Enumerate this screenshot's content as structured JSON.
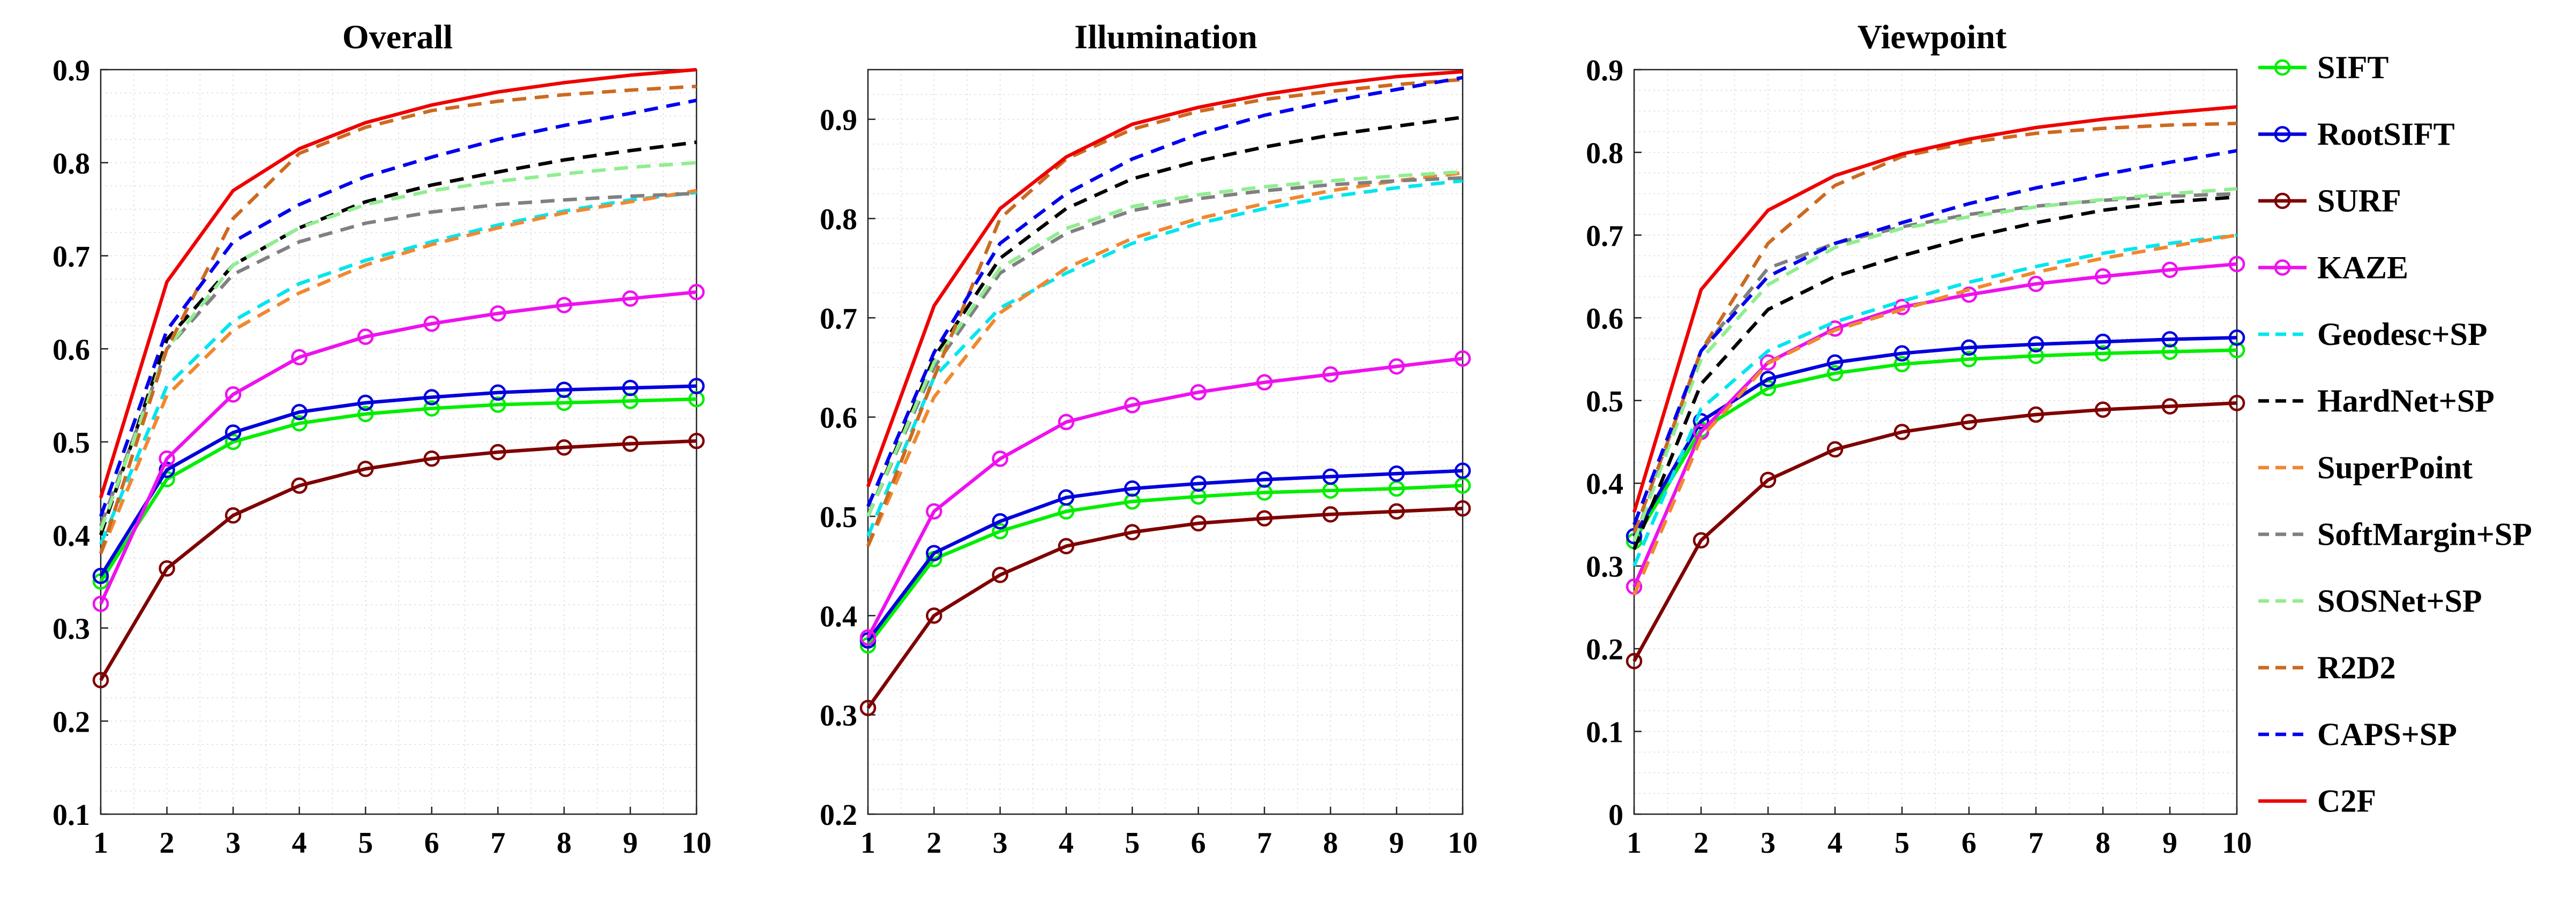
{
  "chart_data": [
    {
      "type": "line",
      "title": "Overall",
      "xlabel": "",
      "ylabel": "",
      "x": [
        1,
        2,
        3,
        4,
        5,
        6,
        7,
        8,
        9,
        10
      ],
      "xticks": [
        1,
        2,
        3,
        4,
        5,
        6,
        7,
        8,
        9,
        10
      ],
      "xlim": [
        1,
        10
      ],
      "ylim": [
        0.1,
        0.9
      ],
      "yticks": [
        0.1,
        0.2,
        0.3,
        0.4,
        0.5,
        0.6,
        0.7,
        0.8,
        0.9
      ],
      "ytick_labels": [
        "0.1",
        "0.2",
        "0.3",
        "0.4",
        "0.5",
        "0.6",
        "0.7",
        "0.8",
        "0.9"
      ],
      "grid": "on",
      "series": [
        {
          "name": "SIFT",
          "values": [
            0.35,
            0.46,
            0.5,
            0.52,
            0.53,
            0.536,
            0.54,
            0.542,
            0.544,
            0.546
          ]
        },
        {
          "name": "RootSIFT",
          "values": [
            0.356,
            0.47,
            0.51,
            0.532,
            0.542,
            0.548,
            0.553,
            0.556,
            0.558,
            0.56
          ]
        },
        {
          "name": "SURF",
          "values": [
            0.244,
            0.364,
            0.421,
            0.453,
            0.471,
            0.482,
            0.489,
            0.494,
            0.498,
            0.501
          ]
        },
        {
          "name": "KAZE",
          "values": [
            0.326,
            0.482,
            0.551,
            0.591,
            0.613,
            0.627,
            0.638,
            0.647,
            0.654,
            0.661
          ]
        },
        {
          "name": "Geodesc+SP",
          "values": [
            0.39,
            0.56,
            0.63,
            0.67,
            0.695,
            0.715,
            0.733,
            0.748,
            0.76,
            0.768
          ]
        },
        {
          "name": "HardNet+SP",
          "values": [
            0.4,
            0.61,
            0.69,
            0.73,
            0.758,
            0.776,
            0.79,
            0.803,
            0.813,
            0.822
          ]
        },
        {
          "name": "SuperPoint",
          "values": [
            0.38,
            0.55,
            0.62,
            0.66,
            0.69,
            0.712,
            0.73,
            0.746,
            0.758,
            0.77
          ]
        },
        {
          "name": "SoftMargin+SP",
          "values": [
            0.41,
            0.6,
            0.68,
            0.715,
            0.735,
            0.747,
            0.755,
            0.76,
            0.764,
            0.767
          ]
        },
        {
          "name": "SOSNet+SP",
          "values": [
            0.405,
            0.6,
            0.69,
            0.73,
            0.755,
            0.77,
            0.78,
            0.788,
            0.795,
            0.8
          ]
        },
        {
          "name": "R2D2",
          "values": [
            0.38,
            0.6,
            0.74,
            0.81,
            0.838,
            0.856,
            0.866,
            0.873,
            0.878,
            0.882
          ]
        },
        {
          "name": "CAPS+SP",
          "values": [
            0.42,
            0.62,
            0.715,
            0.755,
            0.785,
            0.806,
            0.825,
            0.84,
            0.853,
            0.867
          ]
        },
        {
          "name": "C2F",
          "values": [
            0.44,
            0.672,
            0.77,
            0.815,
            0.843,
            0.862,
            0.876,
            0.886,
            0.894,
            0.9
          ]
        }
      ]
    },
    {
      "type": "line",
      "title": "Illumination",
      "xlabel": "",
      "ylabel": "",
      "x": [
        1,
        2,
        3,
        4,
        5,
        6,
        7,
        8,
        9,
        10
      ],
      "xticks": [
        1,
        2,
        3,
        4,
        5,
        6,
        7,
        8,
        9,
        10
      ],
      "xlim": [
        1,
        10
      ],
      "ylim": [
        0.2,
        0.95
      ],
      "yticks": [
        0.2,
        0.3,
        0.4,
        0.5,
        0.6,
        0.7,
        0.8,
        0.9
      ],
      "ytick_labels": [
        "0.2",
        "0.3",
        "0.4",
        "0.5",
        "0.6",
        "0.7",
        "0.8",
        "0.9"
      ],
      "grid": "on",
      "series": [
        {
          "name": "SIFT",
          "values": [
            0.37,
            0.457,
            0.485,
            0.505,
            0.515,
            0.52,
            0.524,
            0.526,
            0.528,
            0.531
          ]
        },
        {
          "name": "RootSIFT",
          "values": [
            0.375,
            0.463,
            0.495,
            0.519,
            0.528,
            0.533,
            0.537,
            0.54,
            0.543,
            0.546
          ]
        },
        {
          "name": "SURF",
          "values": [
            0.307,
            0.4,
            0.441,
            0.47,
            0.484,
            0.493,
            0.498,
            0.502,
            0.505,
            0.508
          ]
        },
        {
          "name": "KAZE",
          "values": [
            0.378,
            0.505,
            0.558,
            0.595,
            0.612,
            0.625,
            0.635,
            0.643,
            0.651,
            0.659
          ]
        },
        {
          "name": "Geodesc+SP",
          "values": [
            0.48,
            0.64,
            0.71,
            0.745,
            0.775,
            0.795,
            0.81,
            0.822,
            0.831,
            0.838
          ]
        },
        {
          "name": "HardNet+SP",
          "values": [
            0.5,
            0.66,
            0.76,
            0.81,
            0.84,
            0.858,
            0.872,
            0.884,
            0.893,
            0.902
          ]
        },
        {
          "name": "SuperPoint",
          "values": [
            0.47,
            0.62,
            0.705,
            0.75,
            0.78,
            0.8,
            0.815,
            0.828,
            0.838,
            0.846
          ]
        },
        {
          "name": "SoftMargin+SP",
          "values": [
            0.5,
            0.65,
            0.745,
            0.785,
            0.808,
            0.82,
            0.828,
            0.834,
            0.838,
            0.841
          ]
        },
        {
          "name": "SOSNet+SP",
          "values": [
            0.5,
            0.655,
            0.75,
            0.79,
            0.812,
            0.824,
            0.832,
            0.838,
            0.843,
            0.847
          ]
        },
        {
          "name": "R2D2",
          "values": [
            0.47,
            0.64,
            0.8,
            0.86,
            0.89,
            0.908,
            0.92,
            0.928,
            0.935,
            0.94
          ]
        },
        {
          "name": "CAPS+SP",
          "values": [
            0.51,
            0.665,
            0.775,
            0.825,
            0.86,
            0.885,
            0.904,
            0.918,
            0.93,
            0.942
          ]
        },
        {
          "name": "C2F",
          "values": [
            0.53,
            0.712,
            0.81,
            0.862,
            0.895,
            0.912,
            0.925,
            0.935,
            0.943,
            0.948
          ]
        }
      ]
    },
    {
      "type": "line",
      "title": "Viewpoint",
      "xlabel": "",
      "ylabel": "",
      "x": [
        1,
        2,
        3,
        4,
        5,
        6,
        7,
        8,
        9,
        10
      ],
      "xticks": [
        1,
        2,
        3,
        4,
        5,
        6,
        7,
        8,
        9,
        10
      ],
      "xlim": [
        1,
        10
      ],
      "ylim": [
        0,
        0.9
      ],
      "yticks": [
        0,
        0.1,
        0.2,
        0.3,
        0.4,
        0.5,
        0.6,
        0.7,
        0.8,
        0.9
      ],
      "ytick_labels": [
        "0",
        "0.1",
        "0.2",
        "0.3",
        "0.4",
        "0.5",
        "0.6",
        "0.7",
        "0.8",
        "0.9"
      ],
      "grid": "on",
      "series": [
        {
          "name": "SIFT",
          "values": [
            0.33,
            0.465,
            0.515,
            0.533,
            0.544,
            0.55,
            0.554,
            0.557,
            0.559,
            0.561
          ]
        },
        {
          "name": "RootSIFT",
          "values": [
            0.336,
            0.475,
            0.526,
            0.546,
            0.557,
            0.564,
            0.568,
            0.571,
            0.574,
            0.576
          ]
        },
        {
          "name": "SURF",
          "values": [
            0.185,
            0.331,
            0.404,
            0.441,
            0.462,
            0.474,
            0.483,
            0.489,
            0.493,
            0.497
          ]
        },
        {
          "name": "KAZE",
          "values": [
            0.275,
            0.462,
            0.546,
            0.587,
            0.613,
            0.628,
            0.641,
            0.65,
            0.658,
            0.665
          ]
        },
        {
          "name": "Geodesc+SP",
          "values": [
            0.3,
            0.49,
            0.56,
            0.595,
            0.62,
            0.643,
            0.662,
            0.678,
            0.69,
            0.7
          ]
        },
        {
          "name": "HardNet+SP",
          "values": [
            0.32,
            0.52,
            0.61,
            0.65,
            0.675,
            0.697,
            0.715,
            0.73,
            0.74,
            0.746
          ]
        },
        {
          "name": "SuperPoint",
          "values": [
            0.265,
            0.455,
            0.545,
            0.585,
            0.61,
            0.634,
            0.655,
            0.672,
            0.686,
            0.7
          ]
        },
        {
          "name": "SoftMargin+SP",
          "values": [
            0.33,
            0.56,
            0.66,
            0.69,
            0.71,
            0.725,
            0.735,
            0.742,
            0.747,
            0.75
          ]
        },
        {
          "name": "SOSNet+SP",
          "values": [
            0.33,
            0.55,
            0.64,
            0.685,
            0.708,
            0.722,
            0.734,
            0.743,
            0.75,
            0.756
          ]
        },
        {
          "name": "R2D2",
          "values": [
            0.34,
            0.56,
            0.69,
            0.76,
            0.795,
            0.812,
            0.823,
            0.829,
            0.833,
            0.835
          ]
        },
        {
          "name": "CAPS+SP",
          "values": [
            0.35,
            0.56,
            0.65,
            0.69,
            0.715,
            0.738,
            0.757,
            0.773,
            0.788,
            0.802
          ]
        },
        {
          "name": "C2F",
          "values": [
            0.365,
            0.634,
            0.73,
            0.772,
            0.798,
            0.816,
            0.83,
            0.84,
            0.848,
            0.855
          ]
        }
      ]
    }
  ],
  "styles": [
    {
      "name": "SIFT",
      "color": "#00ee00",
      "dash": "solid",
      "marker": "circle"
    },
    {
      "name": "RootSIFT",
      "color": "#0000dd",
      "dash": "solid",
      "marker": "circle"
    },
    {
      "name": "SURF",
      "color": "#7f0000",
      "dash": "solid",
      "marker": "circle"
    },
    {
      "name": "KAZE",
      "color": "#ee11ee",
      "dash": "solid",
      "marker": "circle"
    },
    {
      "name": "Geodesc+SP",
      "color": "#00e5ee",
      "dash": "dashed",
      "marker": "none"
    },
    {
      "name": "HardNet+SP",
      "color": "#000000",
      "dash": "dashed",
      "marker": "none"
    },
    {
      "name": "SuperPoint",
      "color": "#f08830",
      "dash": "dashed",
      "marker": "none"
    },
    {
      "name": "SoftMargin+SP",
      "color": "#808080",
      "dash": "dashed",
      "marker": "none"
    },
    {
      "name": "SOSNet+SP",
      "color": "#90ee90",
      "dash": "dashed",
      "marker": "none"
    },
    {
      "name": "R2D2",
      "color": "#cc6a20",
      "dash": "dashed",
      "marker": "none"
    },
    {
      "name": "CAPS+SP",
      "color": "#0000ee",
      "dash": "dashed",
      "marker": "none"
    },
    {
      "name": "C2F",
      "color": "#ee0000",
      "dash": "solid",
      "marker": "none"
    }
  ],
  "legend": {
    "placement": "right",
    "items": [
      "SIFT",
      "RootSIFT",
      "SURF",
      "KAZE",
      "Geodesc+SP",
      "HardNet+SP",
      "SuperPoint",
      "SoftMargin+SP",
      "SOSNet+SP",
      "R2D2",
      "CAPS+SP",
      "C2F"
    ]
  }
}
